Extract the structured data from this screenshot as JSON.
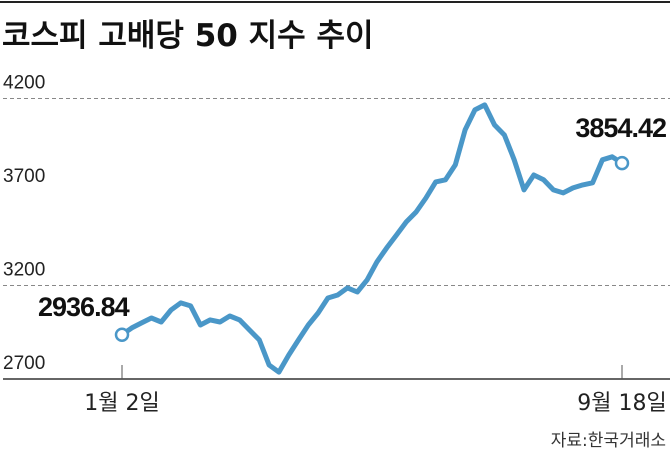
{
  "chart_data": {
    "type": "line",
    "title": "코스피 고배당 50 지수 추이",
    "xlabel": "",
    "ylabel": "",
    "x_tick_labels": [
      "1월 2일",
      "9월 18일"
    ],
    "y_ticks": [
      2700,
      3200,
      3700,
      4200
    ],
    "ylim": [
      2700,
      4200
    ],
    "grid": "dashed at 3200 and 4200",
    "line_color": "#4a97c8",
    "annotations": [
      {
        "label": "2936.84",
        "at": "start"
      },
      {
        "label": "3854.42",
        "at": "end"
      }
    ],
    "values": [
      2936.84,
      2973,
      3000,
      3026,
      3005,
      3069,
      3107,
      3091,
      2989,
      3016,
      3005,
      3037,
      3016,
      2962,
      2909,
      2775,
      2737,
      2828,
      2909,
      2989,
      3053,
      3133,
      3149,
      3187,
      3165,
      3230,
      3326,
      3401,
      3470,
      3540,
      3593,
      3668,
      3754,
      3765,
      3845,
      4032,
      4139,
      4166,
      4059,
      4005,
      3872,
      3711,
      3791,
      3765,
      3711,
      3695,
      3722,
      3738,
      3749,
      3872,
      3888,
      3854.42
    ],
    "source": "자료:한국거래소"
  }
}
